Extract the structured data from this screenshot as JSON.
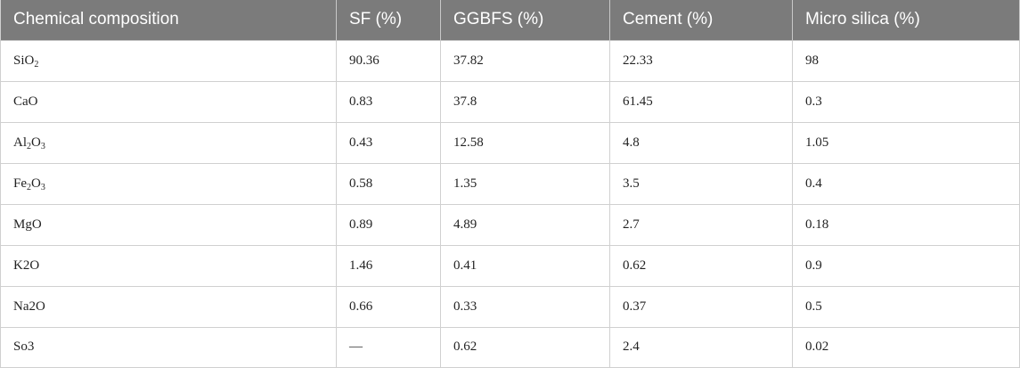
{
  "table": {
    "headers": [
      "Chemical composition",
      "SF (%)",
      "GGBFS (%)",
      "Cement (%)",
      "Micro silica (%)"
    ],
    "rows": [
      {
        "compound": {
          "parts": [
            "Si",
            "O",
            "2"
          ]
        },
        "values": [
          "90.36",
          "37.82",
          "22.33",
          "98"
        ]
      },
      {
        "compound": {
          "text": "CaO"
        },
        "values": [
          "0.83",
          "37.8",
          "61.45",
          "0.3"
        ]
      },
      {
        "compound": {
          "parts": [
            "Al",
            "2",
            "O",
            "3"
          ]
        },
        "values": [
          "0.43",
          "12.58",
          "4.8",
          "1.05"
        ]
      },
      {
        "compound": {
          "parts": [
            "Fe",
            "2",
            "O",
            "3"
          ]
        },
        "values": [
          "0.58",
          "1.35",
          "3.5",
          "0.4"
        ]
      },
      {
        "compound": {
          "text": "MgO"
        },
        "values": [
          "0.89",
          "4.89",
          "2.7",
          "0.18"
        ]
      },
      {
        "compound": {
          "text": "K2O"
        },
        "values": [
          "1.46",
          "0.41",
          "0.62",
          "0.9"
        ]
      },
      {
        "compound": {
          "text": "Na2O"
        },
        "values": [
          "0.66",
          "0.33",
          "0.37",
          "0.5"
        ]
      },
      {
        "compound": {
          "text": "So3"
        },
        "values": [
          "—",
          "0.62",
          "2.4",
          "0.02"
        ]
      }
    ]
  }
}
